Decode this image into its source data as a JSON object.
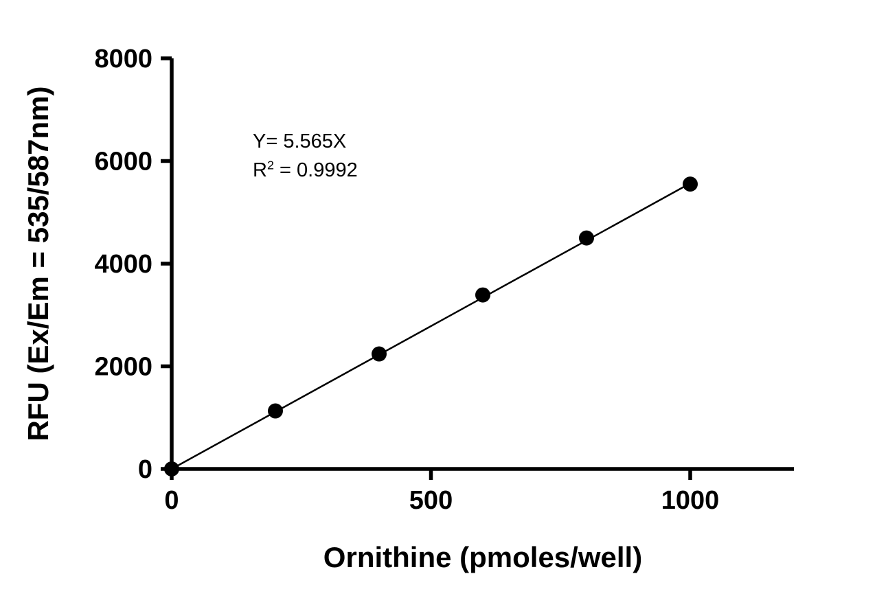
{
  "chart": {
    "annotation": {
      "equation": "Y= 5.565X",
      "r_base": "R",
      "r_exp": "2",
      "r_tail": " = 0.9992"
    }
  },
  "chart_data": {
    "type": "scatter",
    "title": "",
    "xlabel": "Ornithine (pmoles/well)",
    "ylabel": "RFU (Ex/Em = 535/587nm)",
    "x": [
      0,
      200,
      400,
      600,
      800,
      1000
    ],
    "y": [
      0,
      1130,
      2240,
      3390,
      4500,
      5550
    ],
    "fit": {
      "type": "linear_through_origin",
      "slope": 5.565,
      "r_squared": 0.9992,
      "equation": "Y= 5.565X"
    },
    "xlim": [
      0,
      1200
    ],
    "ylim": [
      0,
      8000
    ],
    "xticks": [
      0,
      500,
      1000
    ],
    "yticks": [
      0,
      2000,
      4000,
      6000,
      8000
    ],
    "grid": false,
    "legend": false,
    "marker": {
      "shape": "circle",
      "color": "#000000",
      "radius": 11
    },
    "line_color": "#000000",
    "axis_color": "#000000"
  }
}
